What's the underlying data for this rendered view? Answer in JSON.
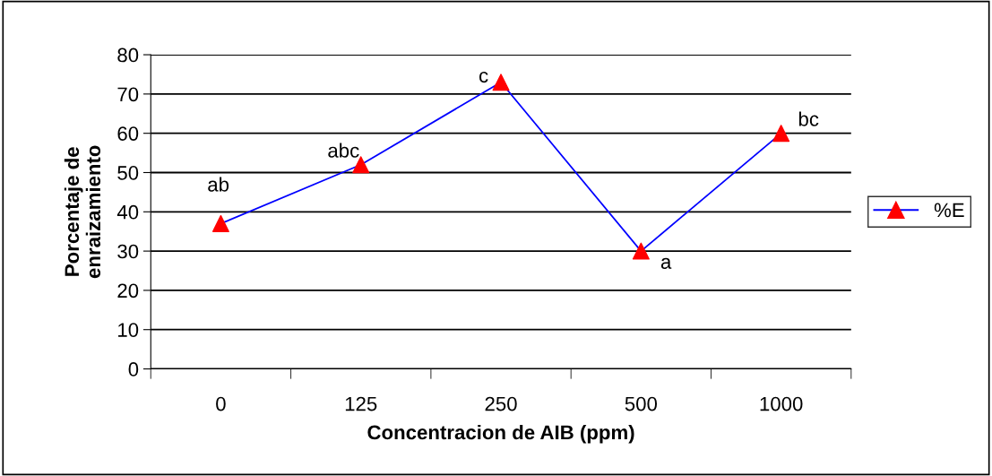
{
  "chart_data": {
    "type": "line",
    "xlabel": "Concentracion de AIB (ppm)",
    "ylabel": "Porcentaje de\nenraizamiento",
    "categories": [
      "0",
      "125",
      "250",
      "500",
      "1000"
    ],
    "series": [
      {
        "name": "%E",
        "color": "#0000ff",
        "colors": [
          "#ff0000",
          "#ff0000",
          "#ff0000",
          "#ff0000",
          "#ff0000"
        ],
        "values": [
          37,
          52,
          73,
          30,
          60
        ]
      }
    ],
    "marker": "triangle",
    "line_style": "solid",
    "ylim": [
      0,
      80
    ],
    "yticks": [
      0,
      10,
      20,
      30,
      40,
      50,
      60,
      70,
      80
    ],
    "grid": "y",
    "legend": "right",
    "annotations": [
      {
        "text": "ab",
        "x": "0",
        "y": 37
      },
      {
        "text": "abc",
        "x": "125",
        "y": 52
      },
      {
        "text": "c",
        "x": "250",
        "y": 73
      },
      {
        "text": "a",
        "x": "500",
        "y": 30
      },
      {
        "text": "bc",
        "x": "1000",
        "y": 60
      }
    ]
  }
}
